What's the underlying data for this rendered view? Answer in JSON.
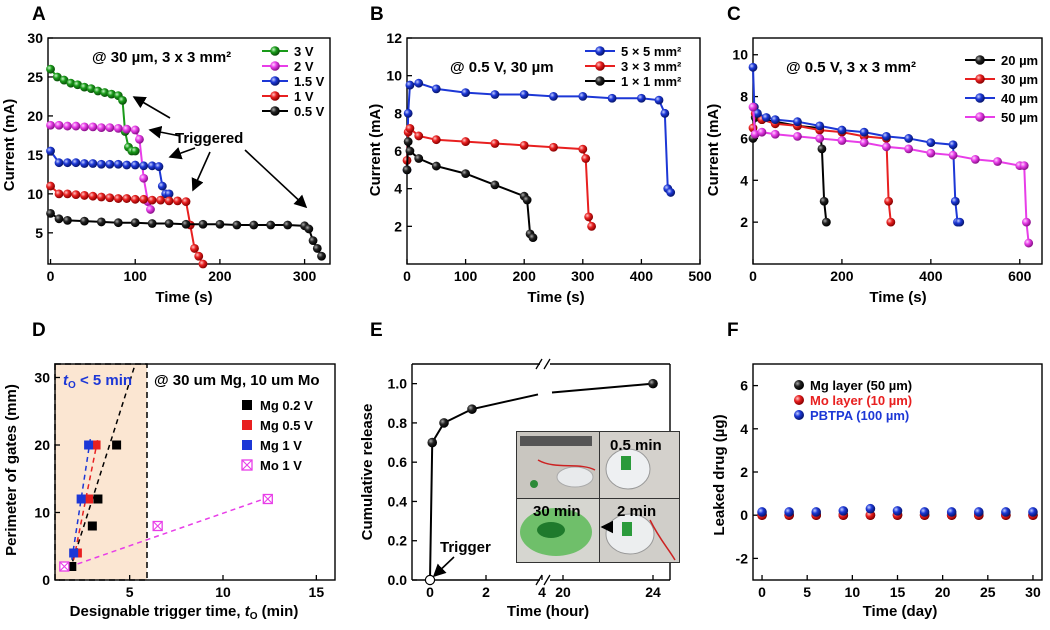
{
  "panels": [
    {
      "id": "A",
      "annotation": "@ 30 µm, 3 x 3 mm²",
      "xlabel": "Time (s)",
      "ylabel": "Current (mA)",
      "xticks": [
        "0",
        "100",
        "200",
        "300"
      ],
      "yticks": [
        "5",
        "10",
        "15",
        "20",
        "25",
        "30"
      ],
      "callout": "Triggered",
      "legend": [
        "3 V",
        "2 V",
        "1.5 V",
        "1 V",
        "0.5 V"
      ]
    },
    {
      "id": "B",
      "annotation": "@ 0.5 V, 30 µm",
      "xlabel": "Time (s)",
      "ylabel": "Current (mA)",
      "xticks": [
        "0",
        "100",
        "200",
        "300",
        "400",
        "500"
      ],
      "yticks": [
        "2",
        "4",
        "6",
        "8",
        "10",
        "12"
      ],
      "legend": [
        "5 × 5 mm²",
        "3 × 3 mm²",
        "1 × 1 mm²"
      ]
    },
    {
      "id": "C",
      "annotation": "@ 0.5 V, 3 x 3 mm²",
      "xlabel": "Time (s)",
      "ylabel": "Current (mA)",
      "xticks": [
        "0",
        "200",
        "400",
        "600"
      ],
      "yticks": [
        "2",
        "4",
        "6",
        "8",
        "10"
      ],
      "legend": [
        "20 µm",
        "30 µm",
        "40 µm",
        "50 µm"
      ]
    },
    {
      "id": "D",
      "annotation": "@ 30 um Mg, 10 um Mo",
      "shade_label": "t",
      "shade_label_sub": "O",
      "shade_label_rest": " < 5 min",
      "xlabel": "Designable trigger time, ",
      "xlabel_var": "t",
      "xlabel_sub": "O",
      "xlabel_unit": " (min)",
      "ylabel": "Perimeter of gates (mm)",
      "xticks": [
        "5",
        "10",
        "15"
      ],
      "yticks": [
        "0",
        "10",
        "20",
        "30"
      ],
      "legend": [
        "Mg 0.2 V",
        "Mg 0.5 V",
        "Mg 1 V",
        "Mo 1 V"
      ]
    },
    {
      "id": "E",
      "xlabel": "Time (hour)",
      "ylabel": "Cumulative release",
      "xticks": [
        "0",
        "2",
        "4",
        "20",
        "24"
      ],
      "yticks": [
        "0.0",
        "0.2",
        "0.4",
        "0.6",
        "0.8",
        "1.0"
      ],
      "trigger_label": "Trigger",
      "inset_labels": [
        "0.5 min",
        "30 min",
        "2 min"
      ]
    },
    {
      "id": "F",
      "xlabel": "Time (day)",
      "ylabel": "Leaked drug (µg)",
      "xticks": [
        "0",
        "5",
        "10",
        "15",
        "20",
        "25",
        "30"
      ],
      "yticks": [
        "-2",
        "0",
        "2",
        "4",
        "6"
      ],
      "legend": [
        "Mg layer (50 µm)",
        "Mo layer (10 µm)",
        "PBTPA (100 µm)"
      ]
    }
  ],
  "chart_data": [
    {
      "panel": "A",
      "type": "scatter",
      "xlabel": "Time (s)",
      "ylabel": "Current (mA)",
      "xlim": [
        -3,
        330
      ],
      "ylim": [
        1,
        30
      ],
      "series": [
        {
          "name": "3 V",
          "color": "#1a9b1a",
          "x": [
            0,
            8,
            16,
            24,
            32,
            40,
            48,
            56,
            64,
            72,
            80,
            85,
            88,
            92,
            96,
            100
          ],
          "y": [
            26,
            25,
            24.6,
            24.2,
            24,
            23.7,
            23.5,
            23.2,
            23,
            22.8,
            22.6,
            22,
            18,
            16,
            15.5,
            15.5
          ]
        },
        {
          "name": "2 V",
          "color": "#e83ee8",
          "x": [
            0,
            10,
            20,
            30,
            40,
            50,
            60,
            70,
            80,
            90,
            100,
            105,
            110,
            115,
            118
          ],
          "y": [
            18.8,
            18.8,
            18.7,
            18.7,
            18.6,
            18.6,
            18.5,
            18.5,
            18.4,
            18.3,
            18.2,
            17,
            12,
            9,
            8
          ]
        },
        {
          "name": "1.5 V",
          "color": "#1c37d6",
          "x": [
            0,
            10,
            20,
            30,
            40,
            50,
            60,
            70,
            80,
            90,
            100,
            110,
            120,
            128,
            132,
            136,
            140
          ],
          "y": [
            15.5,
            14,
            14,
            14,
            13.9,
            13.9,
            13.8,
            13.8,
            13.8,
            13.7,
            13.7,
            13.6,
            13.6,
            13.5,
            11,
            10,
            10
          ]
        },
        {
          "name": "1 V",
          "color": "#e82020",
          "x": [
            0,
            10,
            20,
            30,
            40,
            50,
            60,
            70,
            80,
            90,
            100,
            110,
            120,
            130,
            140,
            150,
            160,
            165,
            170,
            175,
            180
          ],
          "y": [
            11,
            10,
            10,
            9.9,
            9.8,
            9.7,
            9.6,
            9.5,
            9.4,
            9.4,
            9.3,
            9.3,
            9.2,
            9.2,
            9.1,
            9.1,
            9,
            6,
            3,
            2,
            1
          ]
        },
        {
          "name": "0.5 V",
          "color": "#000000",
          "x": [
            0,
            10,
            20,
            40,
            60,
            80,
            100,
            120,
            140,
            160,
            180,
            200,
            220,
            240,
            260,
            280,
            300,
            305,
            310,
            315,
            320
          ],
          "y": [
            7.5,
            6.8,
            6.6,
            6.5,
            6.4,
            6.3,
            6.3,
            6.2,
            6.2,
            6.1,
            6.1,
            6.1,
            6,
            6,
            6,
            6,
            5.9,
            5.5,
            4,
            3,
            2
          ]
        }
      ]
    },
    {
      "panel": "B",
      "type": "scatter",
      "xlabel": "Time (s)",
      "ylabel": "Current (mA)",
      "xlim": [
        0,
        500
      ],
      "ylim": [
        0,
        12
      ],
      "series": [
        {
          "name": "5 × 5 mm²",
          "color": "#1c37d6",
          "x": [
            0,
            2,
            5,
            20,
            50,
            100,
            150,
            200,
            250,
            300,
            350,
            400,
            430,
            440,
            445,
            450
          ],
          "y": [
            5,
            8,
            9.5,
            9.6,
            9.3,
            9.1,
            9,
            9,
            8.9,
            8.9,
            8.8,
            8.8,
            8.7,
            8,
            4,
            3.8
          ]
        },
        {
          "name": "3 × 3 mm²",
          "color": "#e82020",
          "x": [
            0,
            2,
            5,
            20,
            50,
            100,
            150,
            200,
            250,
            300,
            305,
            310,
            315
          ],
          "y": [
            5.5,
            7,
            7.2,
            6.8,
            6.6,
            6.5,
            6.4,
            6.3,
            6.2,
            6.1,
            5.6,
            2.5,
            2
          ]
        },
        {
          "name": "1 × 1 mm²",
          "color": "#000000",
          "x": [
            0,
            2,
            5,
            20,
            50,
            100,
            150,
            200,
            205,
            210,
            215
          ],
          "y": [
            5,
            6.5,
            6,
            5.6,
            5.2,
            4.8,
            4.2,
            3.6,
            3.4,
            1.6,
            1.4
          ]
        }
      ]
    },
    {
      "panel": "C",
      "type": "scatter",
      "xlabel": "Time (s)",
      "ylabel": "Current (mA)",
      "xlim": [
        0,
        650
      ],
      "ylim": [
        0,
        10.8
      ],
      "series": [
        {
          "name": "20 µm",
          "color": "#000000",
          "x": [
            0,
            5,
            20,
            50,
            100,
            150,
            155,
            160,
            165
          ],
          "y": [
            6,
            7,
            6.9,
            6.8,
            6.6,
            6.5,
            5.5,
            3,
            2
          ]
        },
        {
          "name": "30 µm",
          "color": "#e82020",
          "x": [
            0,
            5,
            20,
            50,
            100,
            150,
            200,
            250,
            300,
            305,
            310
          ],
          "y": [
            6.5,
            7.2,
            6.9,
            6.7,
            6.6,
            6.4,
            6.3,
            6.1,
            6,
            3,
            2
          ]
        },
        {
          "name": "40 µm",
          "color": "#1c37d6",
          "x": [
            0,
            3,
            10,
            30,
            50,
            100,
            150,
            200,
            250,
            300,
            350,
            400,
            450,
            455,
            460,
            465
          ],
          "y": [
            9.4,
            7.5,
            7.2,
            7,
            6.9,
            6.8,
            6.6,
            6.4,
            6.3,
            6.1,
            6,
            5.8,
            5.7,
            3,
            2,
            2
          ]
        },
        {
          "name": "50 µm",
          "color": "#e83ee8",
          "x": [
            0,
            5,
            20,
            50,
            100,
            150,
            200,
            250,
            300,
            350,
            400,
            450,
            500,
            550,
            600,
            610,
            615,
            620
          ],
          "y": [
            7.5,
            6.2,
            6.3,
            6.2,
            6.1,
            6,
            5.9,
            5.8,
            5.6,
            5.5,
            5.3,
            5.2,
            5,
            4.9,
            4.7,
            4.7,
            2,
            1
          ]
        }
      ]
    },
    {
      "panel": "D",
      "type": "scatter",
      "xlabel": "Designable trigger time, tO (min)",
      "ylabel": "Perimeter of gates (mm)",
      "xlim": [
        1,
        16
      ],
      "ylim": [
        0,
        32
      ],
      "series": [
        {
          "name": "Mg 0.2 V",
          "color": "#000000",
          "x": [
            1.9,
            3,
            3.3,
            4.3
          ],
          "y": [
            2,
            8,
            12,
            20
          ]
        },
        {
          "name": "Mg 0.5 V",
          "color": "#e82020",
          "x": [
            2.2,
            2.8,
            3.2
          ],
          "y": [
            4,
            12,
            20
          ]
        },
        {
          "name": "Mg 1 V",
          "color": "#1c37d6",
          "x": [
            2,
            2.4,
            2.8
          ],
          "y": [
            4,
            12,
            20
          ]
        },
        {
          "name": "Mo 1 V",
          "color": "#e83ee8",
          "x": [
            1.5,
            6.5,
            12.4
          ],
          "y": [
            2,
            8,
            12
          ]
        }
      ]
    },
    {
      "panel": "E",
      "type": "line",
      "xlabel": "Time (hour)",
      "ylabel": "Cumulative release",
      "ylim": [
        0,
        1.1
      ],
      "series": [
        {
          "x": [
            0,
            0.08,
            0.5,
            1.5,
            24
          ],
          "y": [
            0,
            0.7,
            0.8,
            0.87,
            1.0
          ]
        }
      ]
    },
    {
      "panel": "F",
      "type": "scatter",
      "xlabel": "Time (day)",
      "ylabel": "Leaked drug (µg)",
      "xlim": [
        -1,
        31
      ],
      "ylim": [
        -3,
        7
      ],
      "series": [
        {
          "name": "Mg layer (50 µm)",
          "color": "#000000",
          "x": [
            0,
            3,
            6,
            9,
            12,
            15,
            18,
            21,
            24,
            27,
            30
          ],
          "y": [
            0,
            0,
            0,
            0,
            0,
            0,
            0,
            0,
            0,
            0,
            0
          ]
        },
        {
          "name": "Mo layer (10 µm)",
          "color": "#e82020",
          "x": [
            0,
            3,
            6,
            9,
            12,
            15,
            18,
            21,
            24,
            27,
            30
          ],
          "y": [
            0,
            0,
            0,
            0,
            0,
            0,
            0,
            0,
            0,
            0,
            0
          ]
        },
        {
          "name": "PBTPA (100 µm)",
          "color": "#1c37d6",
          "x": [
            0,
            3,
            6,
            9,
            12,
            15,
            18,
            21,
            24,
            27,
            30
          ],
          "y": [
            0.15,
            0.15,
            0.15,
            0.2,
            0.3,
            0.2,
            0.15,
            0.15,
            0.15,
            0.15,
            0.15
          ]
        }
      ]
    }
  ]
}
